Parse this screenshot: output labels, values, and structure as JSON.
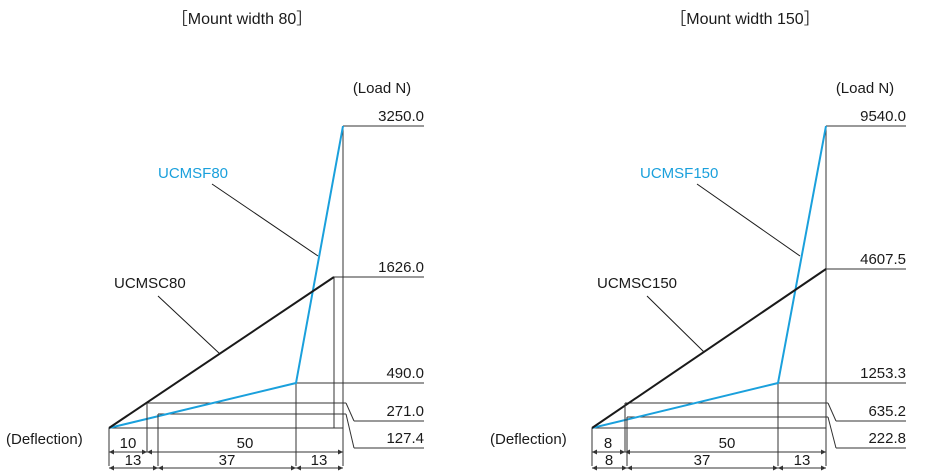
{
  "unit_label": "(Load N)",
  "deflection_label": "(Deflection)",
  "colors": {
    "black_series": "#1a1a1a",
    "blue_series": "#1aa0dc",
    "rule": "#333333"
  },
  "panels": [
    {
      "title": "［Mount width 80］",
      "blue_name": "UCMSF80",
      "black_name": "UCMSC80",
      "loads": [
        "3250.0",
        "1626.0",
        "490.0",
        "271.0",
        "127.4"
      ],
      "top_dims": [
        "10",
        "50"
      ],
      "bottom_dims": [
        "13",
        "37",
        "13"
      ]
    },
    {
      "title": "［Mount width 150］",
      "blue_name": "UCMSF150",
      "black_name": "UCMSC150",
      "loads": [
        "9540.0",
        "4607.5",
        "1253.3",
        "635.2",
        "222.8"
      ],
      "top_dims": [
        "8",
        "50"
      ],
      "bottom_dims": [
        "8",
        "37",
        "13"
      ]
    }
  ]
}
